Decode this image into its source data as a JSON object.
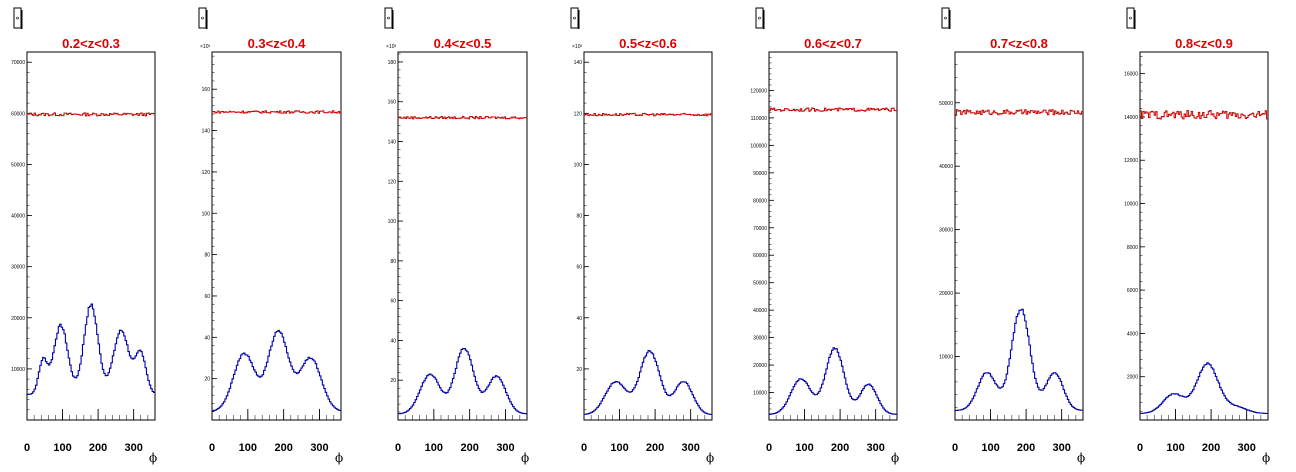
{
  "colors": {
    "title": "#e00000",
    "upper_series": "#cc0000",
    "lower_series": "#0000aa",
    "axis": "#000000"
  },
  "icon": "small-box-icon",
  "chart_data": [
    {
      "type": "line",
      "title": "0.2<z<0.3",
      "xlabel": "ϕ",
      "x_ticks": [
        "0",
        "100",
        "200",
        "300"
      ],
      "xlim": [
        0,
        360
      ],
      "y_ticks": [
        "10000",
        "20000",
        "30000",
        "40000",
        "50000",
        "60000",
        "70000"
      ],
      "y_exponent": "",
      "ylim": [
        0,
        72000
      ],
      "upper_series": {
        "flat_level": 59800,
        "noise": 300
      },
      "lower_series": {
        "baseline": 5000,
        "peaks": [
          [
            45,
            6500,
            12
          ],
          [
            95,
            13500,
            20
          ],
          [
            180,
            17500,
            20
          ],
          [
            265,
            12500,
            22
          ],
          [
            320,
            8000,
            15
          ]
        ]
      }
    },
    {
      "type": "line",
      "title": "0.3<z<0.4",
      "xlabel": "ϕ",
      "x_ticks": [
        "0",
        "100",
        "200",
        "300"
      ],
      "xlim": [
        0,
        360
      ],
      "y_ticks": [
        "20",
        "40",
        "60",
        "80",
        "100",
        "120",
        "140",
        "160"
      ],
      "y_exponent": "×10³",
      "ylim": [
        0,
        178
      ],
      "upper_series": {
        "flat_level": 149,
        "noise": 0.6
      },
      "lower_series": {
        "baseline": 4,
        "peaks": [
          [
            90,
            28,
            30
          ],
          [
            185,
            39,
            28
          ],
          [
            275,
            26,
            30
          ]
        ]
      }
    },
    {
      "type": "line",
      "title": "0.4<z<0.5",
      "xlabel": "ϕ",
      "x_ticks": [
        "0",
        "100",
        "200",
        "300"
      ],
      "xlim": [
        0,
        360
      ],
      "y_ticks": [
        "20",
        "40",
        "60",
        "80",
        "100",
        "120",
        "140",
        "160",
        "180"
      ],
      "y_exponent": "×10³",
      "ylim": [
        0,
        185
      ],
      "upper_series": {
        "flat_level": 152,
        "noise": 0.6
      },
      "lower_series": {
        "baseline": 3,
        "peaks": [
          [
            90,
            20,
            28
          ],
          [
            185,
            33,
            26
          ],
          [
            275,
            19,
            26
          ]
        ]
      }
    },
    {
      "type": "line",
      "title": "0.5<z<0.6",
      "xlabel": "ϕ",
      "x_ticks": [
        "0",
        "100",
        "200",
        "300"
      ],
      "xlim": [
        0,
        360
      ],
      "y_ticks": [
        "20",
        "40",
        "60",
        "80",
        "100",
        "120",
        "140"
      ],
      "y_exponent": "×10³",
      "ylim": [
        0,
        144
      ],
      "upper_series": {
        "flat_level": 119.5,
        "noise": 0.5
      },
      "lower_series": {
        "baseline": 2,
        "peaks": [
          [
            90,
            13,
            30
          ],
          [
            185,
            25,
            28
          ],
          [
            280,
            13,
            26
          ]
        ]
      }
    },
    {
      "type": "line",
      "title": "0.6<z<0.7",
      "xlabel": "ϕ",
      "x_ticks": [
        "0",
        "100",
        "200",
        "300"
      ],
      "xlim": [
        0,
        360
      ],
      "y_ticks": [
        "10000",
        "20000",
        "30000",
        "40000",
        "50000",
        "60000",
        "70000",
        "80000",
        "90000",
        "100000",
        "110000",
        "120000"
      ],
      "y_exponent": "",
      "ylim": [
        0,
        134000
      ],
      "upper_series": {
        "flat_level": 113000,
        "noise": 600
      },
      "lower_series": {
        "baseline": 2000,
        "peaks": [
          [
            90,
            13000,
            28
          ],
          [
            185,
            24000,
            26
          ],
          [
            280,
            11000,
            24
          ]
        ]
      }
    },
    {
      "type": "line",
      "title": "0.7<z<0.8",
      "xlabel": "ϕ",
      "x_ticks": [
        "0",
        "100",
        "200",
        "300"
      ],
      "xlim": [
        0,
        360
      ],
      "y_ticks": [
        "10000",
        "20000",
        "30000",
        "40000",
        "50000"
      ],
      "y_exponent": "",
      "ylim": [
        0,
        58000
      ],
      "upper_series": {
        "flat_level": 48500,
        "noise": 400
      },
      "lower_series": {
        "baseline": 1500,
        "peaks": [
          [
            90,
            6000,
            26
          ],
          [
            185,
            16000,
            26
          ],
          [
            280,
            6000,
            24
          ]
        ]
      }
    },
    {
      "type": "line",
      "title": "0.8<z<0.9",
      "xlabel": "ϕ",
      "x_ticks": [
        "0",
        "100",
        "200",
        "300"
      ],
      "xlim": [
        0,
        360
      ],
      "y_ticks": [
        "2000",
        "4000",
        "6000",
        "8000",
        "10000",
        "12000",
        "14000",
        "16000"
      ],
      "y_exponent": "",
      "ylim": [
        0,
        17000
      ],
      "upper_series": {
        "flat_level": 14100,
        "noise": 200
      },
      "lower_series": {
        "baseline": 300,
        "peaks": [
          [
            95,
            900,
            30
          ],
          [
            190,
            2300,
            30
          ],
          [
            270,
            300,
            30
          ]
        ]
      }
    }
  ]
}
